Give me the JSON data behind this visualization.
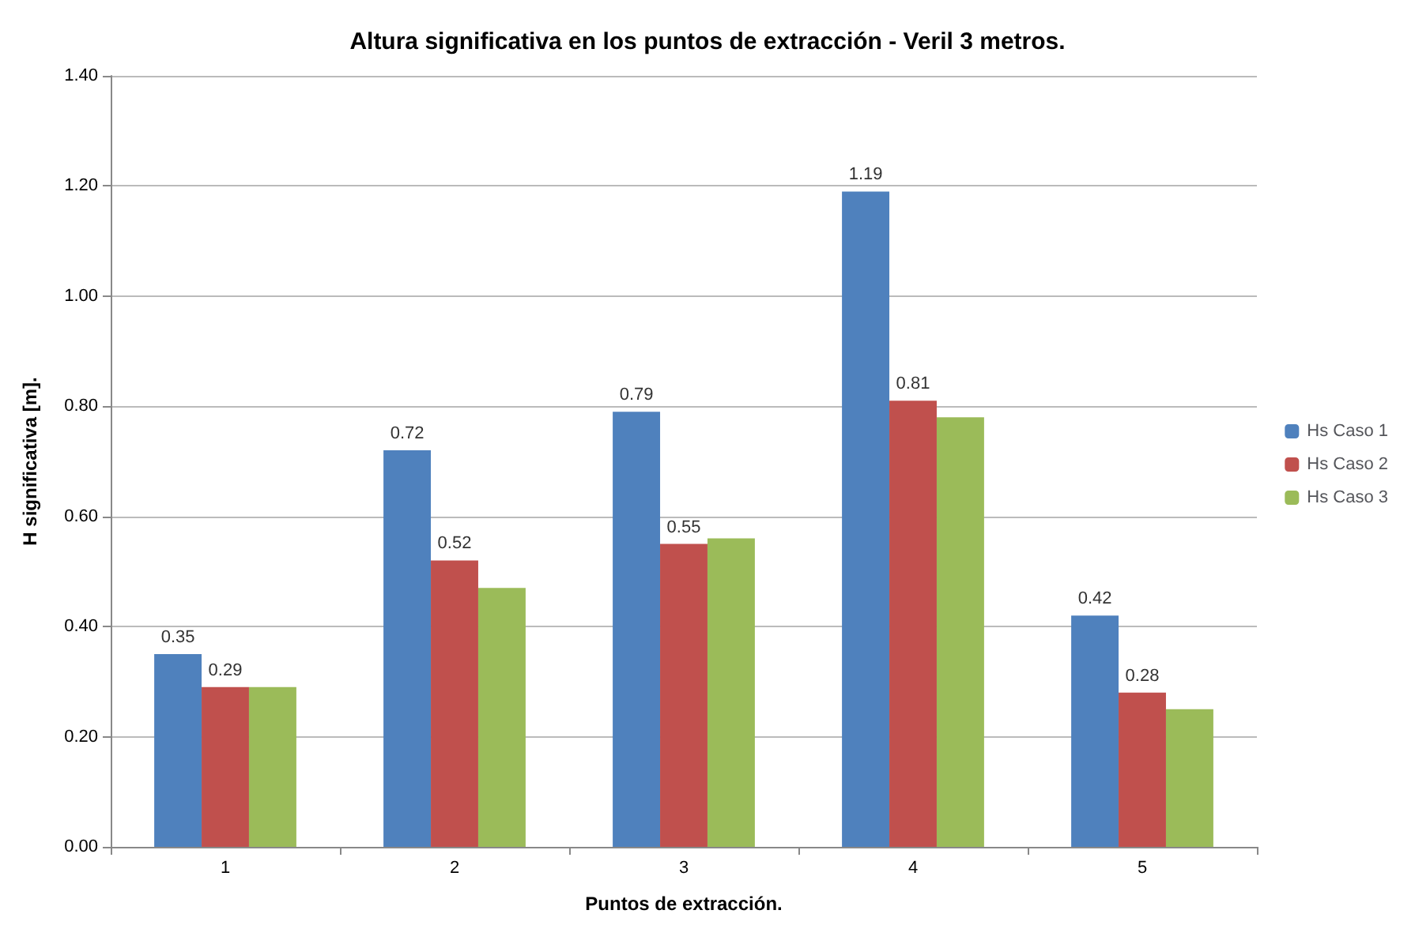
{
  "chart_data": {
    "type": "bar",
    "title": "Altura significativa en los puntos de extracción - Veril 3 metros.",
    "xlabel": "Puntos de extracción.",
    "ylabel": "H significativa [m].",
    "categories": [
      "1",
      "2",
      "3",
      "4",
      "5"
    ],
    "series": [
      {
        "name": "Hs Caso 1",
        "color": "#4f81bd",
        "values": [
          0.35,
          0.72,
          0.79,
          1.19,
          0.42
        ],
        "value_labels": [
          "0.35",
          "0.72",
          "0.79",
          "1.19",
          "0.42"
        ]
      },
      {
        "name": "Hs Caso 2",
        "color": "#c0504d",
        "values": [
          0.29,
          0.52,
          0.55,
          0.81,
          0.28
        ],
        "value_labels": [
          "0.29",
          "0.52",
          "0.55",
          "0.81",
          "0.28"
        ]
      },
      {
        "name": "Hs Caso 3",
        "color": "#9bbb59",
        "values": [
          0.29,
          0.47,
          0.56,
          0.78,
          0.25
        ]
      }
    ],
    "ylim": [
      0,
      1.4
    ],
    "yticks": [
      {
        "value": 0,
        "label": "0.00"
      },
      {
        "value": 0.2,
        "label": "0.20"
      },
      {
        "value": 0.4,
        "label": "0.40"
      },
      {
        "value": 0.6,
        "label": "0.60"
      },
      {
        "value": 0.8,
        "label": "0.80"
      },
      {
        "value": 1,
        "label": "1.00"
      },
      {
        "value": 1.2,
        "label": "1.20"
      },
      {
        "value": 1.4,
        "label": "1.40"
      }
    ],
    "grid": "y",
    "legend": "right"
  }
}
